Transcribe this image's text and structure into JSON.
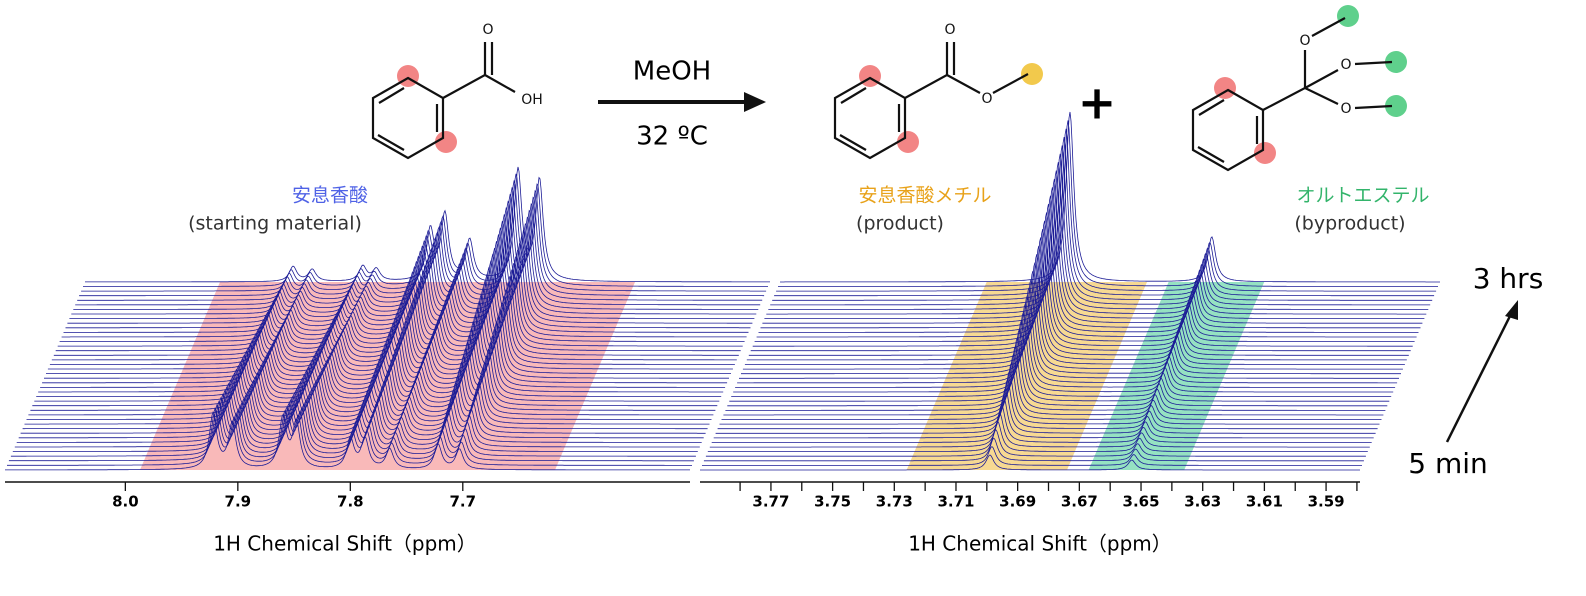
{
  "reaction": {
    "reagent": "MeOH",
    "condition": "32 ºC",
    "plus": "+"
  },
  "structures": {
    "acid_atoms": [
      "O",
      "OH"
    ],
    "ester_atoms": [
      "O",
      "O"
    ],
    "ortho_atoms": [
      "O",
      "O",
      "O"
    ]
  },
  "compound_labels": [
    {
      "name": "安息香酸",
      "role": "(starting material)",
      "color": "#4f62e6"
    },
    {
      "name": "安息香酸メチル",
      "role": "(product)",
      "color": "#e8a21a"
    },
    {
      "name": "オルトエステル",
      "role": "(byproduct)",
      "color": "#33b46b"
    }
  ],
  "time_axis": {
    "end": "3 hrs",
    "start": "5 min"
  },
  "chart_data": [
    {
      "type": "waterfall",
      "xlabel": "1H Chemical Shift（ppm）",
      "xlim": [
        8.107,
        7.498
      ],
      "xticks": [
        {
          "value": 8.0,
          "label": "8.0"
        },
        7.9,
        7.8,
        7.7
      ],
      "minor_xticks": [],
      "n_traces": 42,
      "peak_width": 0.004,
      "color": "#1c1c96",
      "highlights": [
        {
          "range": [
            7.987,
            7.618
          ],
          "color": "#f58a8a"
        }
      ],
      "peaks": [
        {
          "ppm": 7.922,
          "intensity_first": 55,
          "intensity_last": 15
        },
        {
          "ppm": 7.905,
          "intensity_first": 45,
          "intensity_last": 12
        },
        {
          "ppm": 7.86,
          "intensity_first": 50,
          "intensity_last": 15
        },
        {
          "ppm": 7.848,
          "intensity_first": 45,
          "intensity_last": 12
        },
        {
          "ppm": 7.8,
          "intensity_first": 30,
          "intensity_last": 50
        },
        {
          "ppm": 7.787,
          "intensity_first": 30,
          "intensity_last": 65
        },
        {
          "ppm": 7.765,
          "intensity_first": 20,
          "intensity_last": 40
        },
        {
          "ppm": 7.722,
          "intensity_first": 25,
          "intensity_last": 110
        },
        {
          "ppm": 7.703,
          "intensity_first": 20,
          "intensity_last": 100
        }
      ]
    },
    {
      "type": "waterfall",
      "xlabel": "1H Chemical Shift（ppm）",
      "xlim": [
        3.793,
        3.579
      ],
      "xticks": [
        3.77,
        3.75,
        3.73,
        3.71,
        3.69,
        3.67,
        3.65,
        3.63,
        3.61,
        3.59
      ],
      "minor_xticks": [
        3.78,
        3.76,
        3.74,
        3.72,
        3.7,
        3.68,
        3.66,
        3.64,
        3.62,
        3.6,
        3.58
      ],
      "n_traces": 42,
      "peak_width": 0.0015,
      "color": "#1c1c96",
      "highlights": [
        {
          "range": [
            3.726,
            3.674
          ],
          "color": "#f2c04a"
        },
        {
          "range": [
            3.667,
            3.636
          ],
          "color": "#4fcf9a"
        }
      ],
      "peaks": [
        {
          "ppm": 3.699,
          "intensity_first": 15,
          "intensity_last": 170
        },
        {
          "ppm": 3.653,
          "intensity_first": 10,
          "intensity_last": 45
        }
      ]
    }
  ]
}
